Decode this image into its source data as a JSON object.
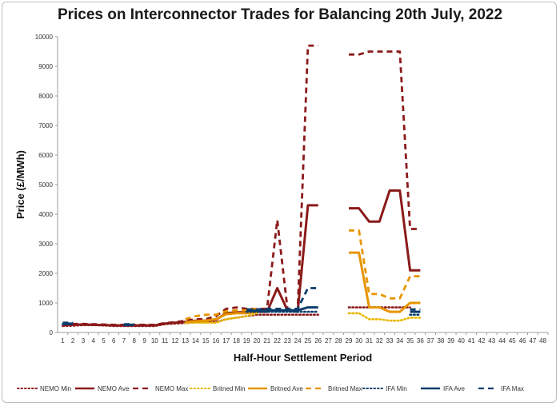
{
  "chart_data": {
    "type": "line",
    "title": "Prices on Interconnector Trades for Balancing 20th July, 2022",
    "xlabel": "Half-Hour Settlement Period",
    "ylabel": "Price (£/MWh)",
    "ylim": [
      0,
      10000
    ],
    "yticks": [
      0,
      1000,
      2000,
      3000,
      4000,
      5000,
      6000,
      7000,
      8000,
      9000,
      10000
    ],
    "categories": [
      "1",
      "2",
      "3",
      "4",
      "5",
      "6",
      "7",
      "8",
      "9",
      "10",
      "11",
      "12",
      "13",
      "14",
      "15",
      "16",
      "17",
      "18",
      "19",
      "20",
      "21",
      "22",
      "23",
      "24",
      "25",
      "26",
      "27",
      "28",
      "29",
      "30",
      "31",
      "32",
      "33",
      "34",
      "35",
      "36",
      "37",
      "38",
      "39",
      "40",
      "41",
      "42",
      "43",
      "44",
      "45",
      "46",
      "47",
      "48"
    ],
    "grid": false,
    "legend_position": "bottom",
    "series": [
      {
        "name": "NEMO Min",
        "color": "#8b1a1a",
        "dash": "dot",
        "values": [
          220,
          230,
          250,
          250,
          240,
          220,
          220,
          220,
          220,
          220,
          280,
          300,
          320,
          350,
          350,
          350,
          450,
          500,
          550,
          600,
          600,
          600,
          600,
          600,
          600,
          600,
          null,
          null,
          850,
          850,
          850,
          850,
          850,
          850,
          850,
          null,
          null,
          null,
          null,
          null,
          null,
          null,
          null,
          null,
          null,
          null,
          null,
          null
        ]
      },
      {
        "name": "NEMO Ave",
        "color": "#8b1a1a",
        "dash": "solid",
        "values": [
          250,
          260,
          270,
          260,
          250,
          240,
          240,
          240,
          240,
          240,
          300,
          330,
          360,
          400,
          400,
          430,
          650,
          680,
          690,
          700,
          700,
          1500,
          750,
          700,
          4300,
          4300,
          null,
          null,
          4200,
          4200,
          3750,
          3750,
          4800,
          4800,
          2100,
          2100,
          null,
          null,
          null,
          null,
          null,
          null,
          null,
          null,
          null,
          null,
          null,
          null
        ]
      },
      {
        "name": "NEMO Max",
        "color": "#8b1a1a",
        "dash": "dash",
        "values": [
          290,
          290,
          290,
          280,
          270,
          260,
          260,
          260,
          260,
          260,
          320,
          350,
          400,
          450,
          450,
          550,
          800,
          850,
          800,
          800,
          800,
          3800,
          800,
          750,
          9700,
          9700,
          null,
          null,
          9400,
          9400,
          9500,
          9500,
          9500,
          9500,
          3500,
          3500,
          null,
          null,
          null,
          null,
          null,
          null,
          null,
          null,
          null,
          null,
          null,
          null
        ]
      },
      {
        "name": "Britned Min",
        "color": "#e8b800",
        "dash": "dot",
        "values": [
          null,
          null,
          null,
          null,
          null,
          null,
          null,
          null,
          null,
          null,
          null,
          null,
          320,
          330,
          330,
          330,
          450,
          500,
          550,
          650,
          null,
          null,
          null,
          null,
          null,
          null,
          null,
          null,
          650,
          650,
          450,
          450,
          400,
          400,
          500,
          500,
          null,
          null,
          null,
          null,
          null,
          null,
          null,
          null,
          null,
          null,
          null,
          null
        ]
      },
      {
        "name": "Britned Ave",
        "color": "#e69500",
        "dash": "solid",
        "values": [
          null,
          null,
          null,
          null,
          null,
          null,
          null,
          null,
          null,
          null,
          null,
          null,
          350,
          380,
          400,
          450,
          620,
          650,
          650,
          700,
          null,
          null,
          null,
          null,
          null,
          null,
          null,
          null,
          2700,
          2700,
          850,
          850,
          700,
          700,
          1000,
          1000,
          null,
          null,
          null,
          null,
          null,
          null,
          null,
          null,
          null,
          null,
          null,
          null
        ]
      },
      {
        "name": "Britned Max",
        "color": "#e69500",
        "dash": "dash",
        "values": [
          null,
          null,
          null,
          null,
          null,
          null,
          null,
          null,
          null,
          null,
          null,
          null,
          450,
          550,
          600,
          600,
          720,
          750,
          750,
          800,
          null,
          null,
          null,
          null,
          null,
          null,
          null,
          null,
          3450,
          3450,
          1300,
          1300,
          1150,
          1150,
          1900,
          1900,
          null,
          null,
          null,
          null,
          null,
          null,
          null,
          null,
          null,
          null,
          null,
          null
        ]
      },
      {
        "name": "IFA Min",
        "color": "#0b3d6b",
        "dash": "dot",
        "values": [
          280,
          280,
          null,
          null,
          null,
          null,
          250,
          250,
          null,
          null,
          null,
          null,
          null,
          null,
          null,
          null,
          null,
          null,
          700,
          700,
          700,
          700,
          700,
          700,
          700,
          700,
          null,
          null,
          null,
          null,
          null,
          null,
          null,
          null,
          600,
          600,
          null,
          null,
          null,
          null,
          null,
          null,
          null,
          null,
          null,
          null,
          null,
          null
        ]
      },
      {
        "name": "IFA Ave",
        "color": "#0b3d6b",
        "dash": "solid",
        "values": [
          300,
          300,
          null,
          null,
          null,
          null,
          260,
          260,
          null,
          null,
          null,
          null,
          null,
          null,
          null,
          null,
          null,
          null,
          740,
          740,
          750,
          750,
          750,
          750,
          850,
          850,
          null,
          null,
          null,
          null,
          null,
          null,
          null,
          null,
          700,
          700,
          null,
          null,
          null,
          null,
          null,
          null,
          null,
          null,
          null,
          null,
          null,
          null
        ]
      },
      {
        "name": "IFA Max",
        "color": "#0b3d6b",
        "dash": "dash",
        "values": [
          330,
          330,
          null,
          null,
          null,
          null,
          280,
          280,
          null,
          null,
          null,
          null,
          null,
          null,
          null,
          null,
          null,
          null,
          780,
          780,
          800,
          800,
          800,
          800,
          1500,
          1500,
          null,
          null,
          null,
          null,
          null,
          null,
          null,
          null,
          780,
          780,
          null,
          null,
          null,
          null,
          null,
          null,
          null,
          null,
          null,
          null,
          null,
          null
        ]
      }
    ]
  }
}
